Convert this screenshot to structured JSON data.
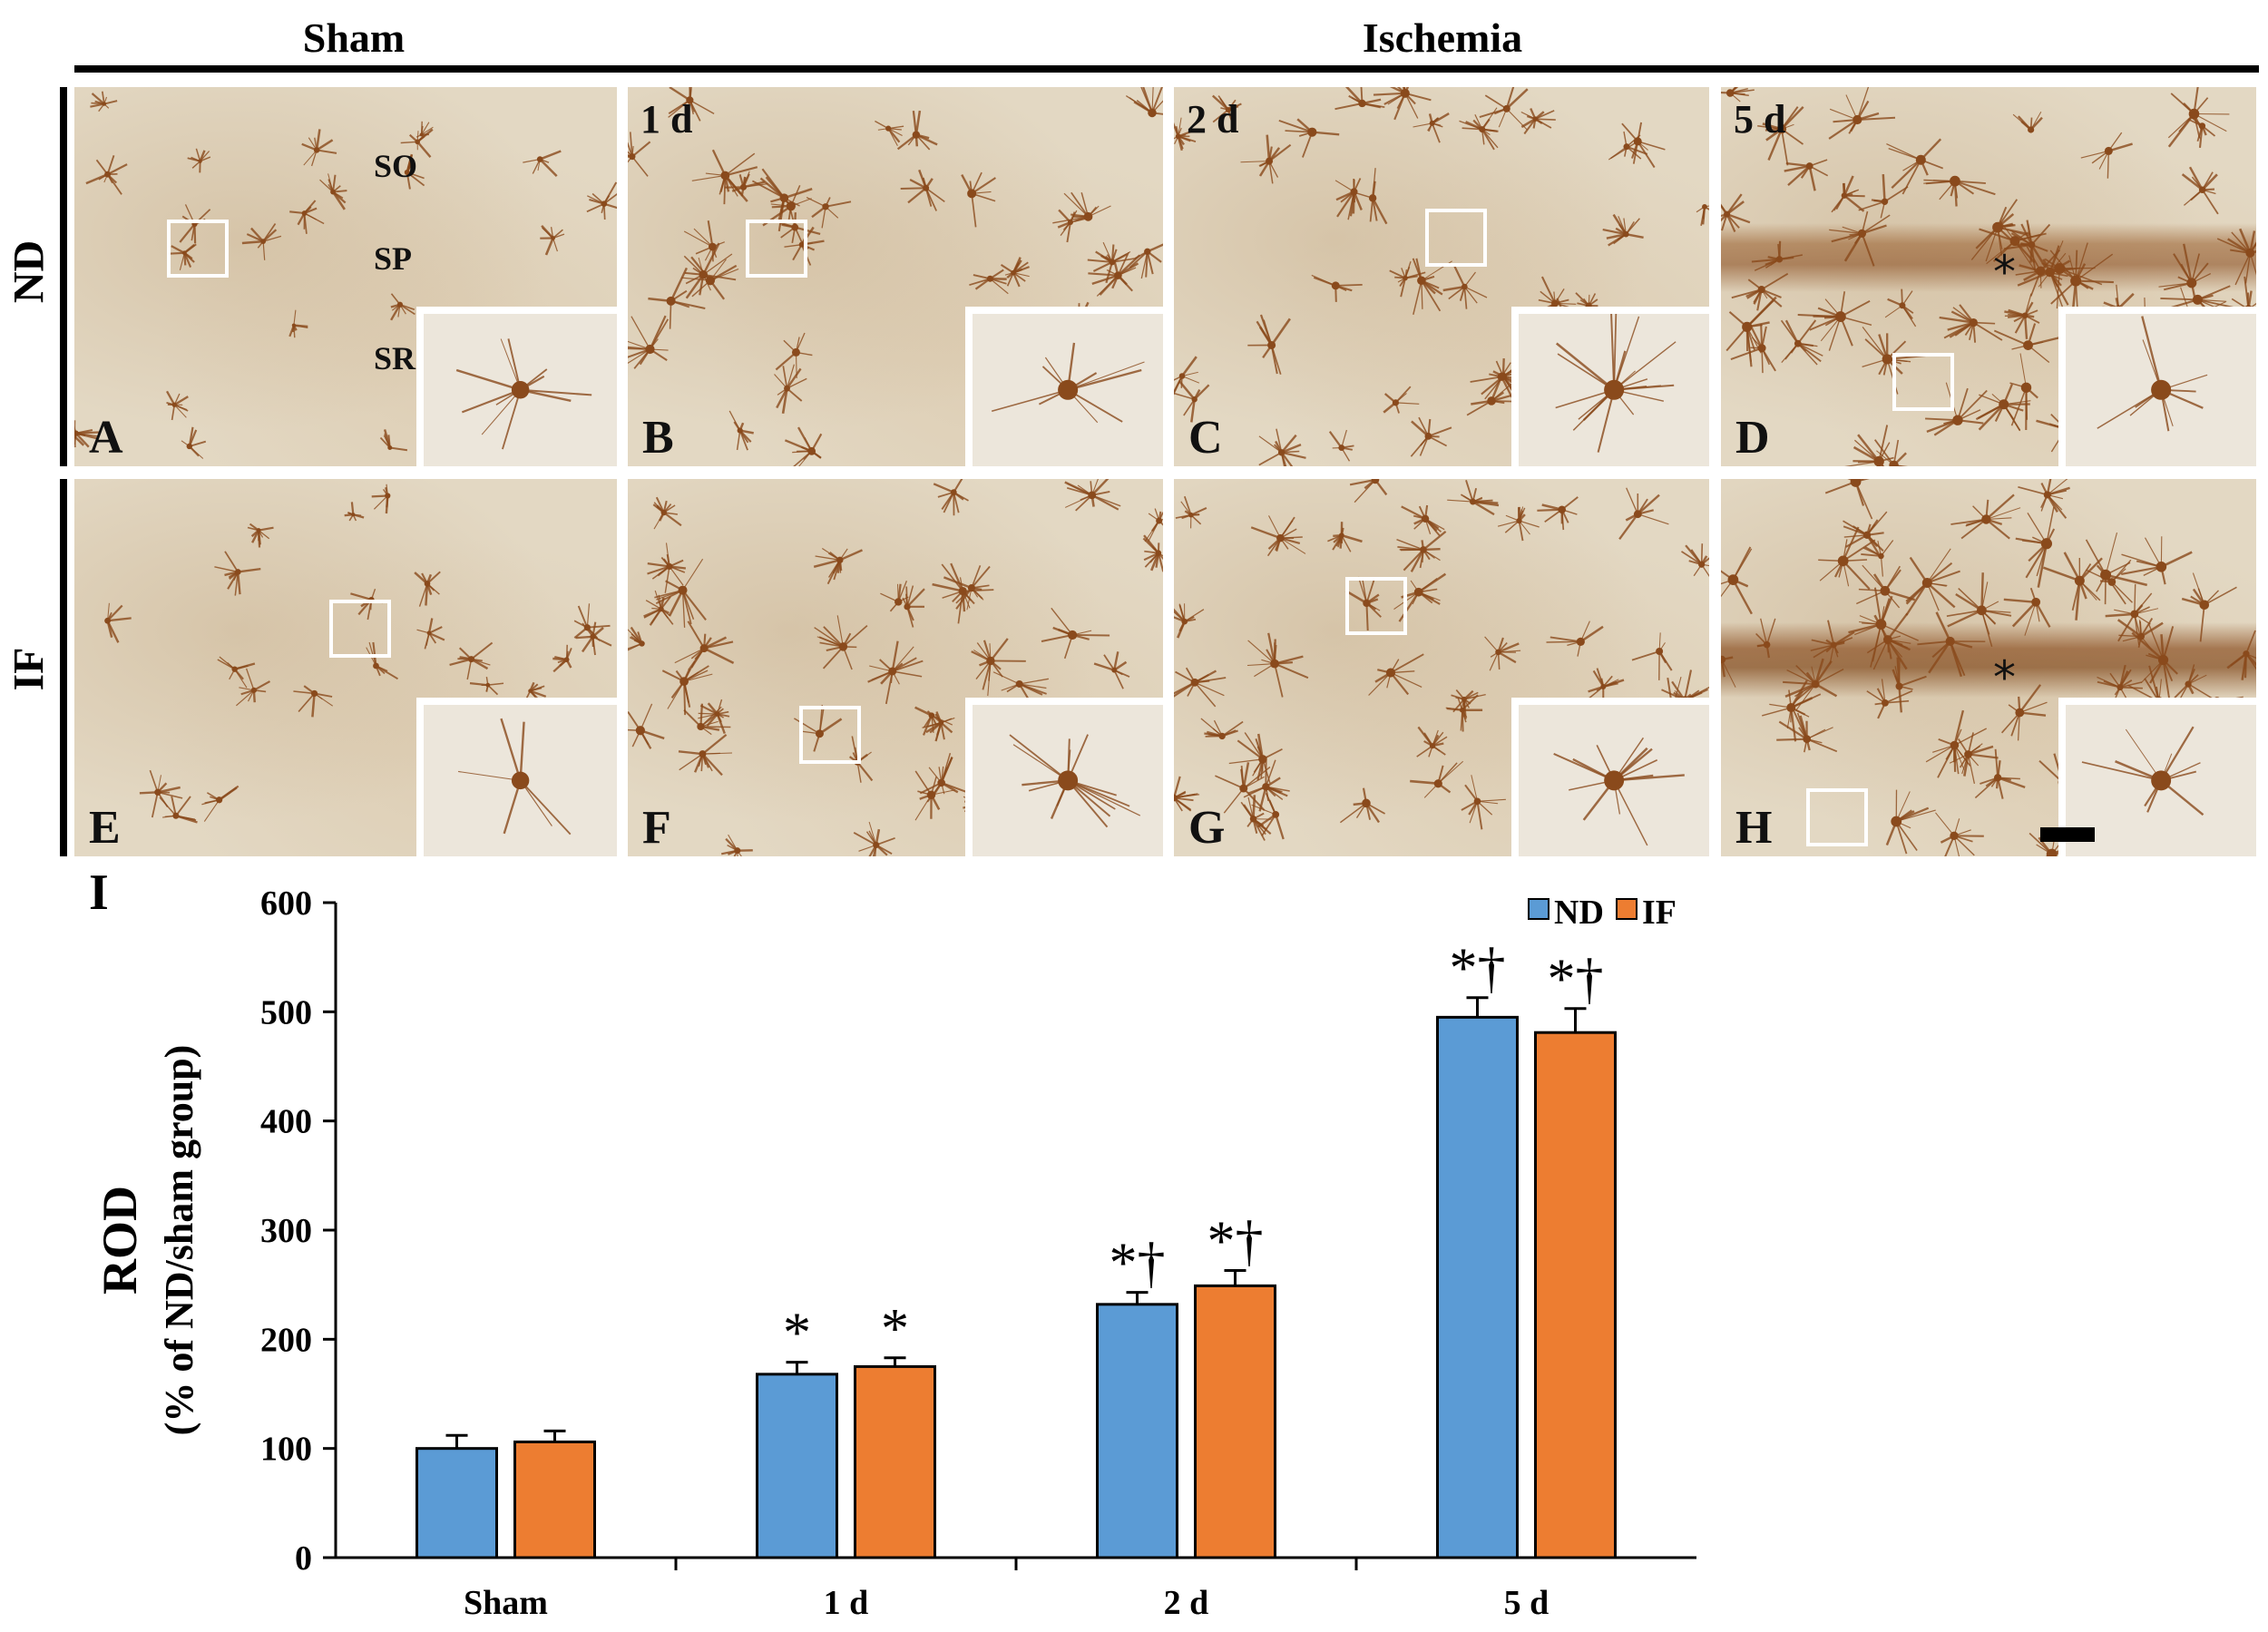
{
  "figure": {
    "header_sham": "Sham",
    "header_ischemia": "Ischemia",
    "row_labels": [
      "ND",
      "IF"
    ],
    "layer_labels": [
      "SO",
      "SP",
      "SR"
    ],
    "time_labels": [
      "1 d",
      "2 d",
      "5 d"
    ],
    "panel_letters": [
      "A",
      "B",
      "C",
      "D",
      "E",
      "F",
      "G",
      "H"
    ],
    "marker": "*",
    "chart_letter": "I"
  },
  "colors": {
    "nd": "#5b9bd5",
    "if": "#ed7d31",
    "stain": "#8a4a1c",
    "background": "#e3d8c3"
  },
  "chart_data": {
    "type": "bar",
    "title": "",
    "categories": [
      "Sham",
      "1 d",
      "2 d",
      "5 d"
    ],
    "series": [
      {
        "name": "ND",
        "values": [
          100,
          168,
          232,
          495
        ],
        "errors": [
          12,
          11,
          11,
          18
        ],
        "marks": [
          "",
          "*",
          "*†",
          "*†"
        ]
      },
      {
        "name": "IF",
        "values": [
          106,
          175,
          249,
          481
        ],
        "errors": [
          10,
          8,
          14,
          22
        ],
        "marks": [
          "",
          "*",
          "*†",
          "*†"
        ]
      }
    ],
    "ylabel_line1": "ROD",
    "ylabel_line2": "(% of ND/sham group)",
    "xlabel": "",
    "ylim": [
      0,
      600
    ],
    "yticks": [
      0,
      100,
      200,
      300,
      400,
      500,
      600
    ],
    "legend_position": "top-right",
    "grid": false
  }
}
